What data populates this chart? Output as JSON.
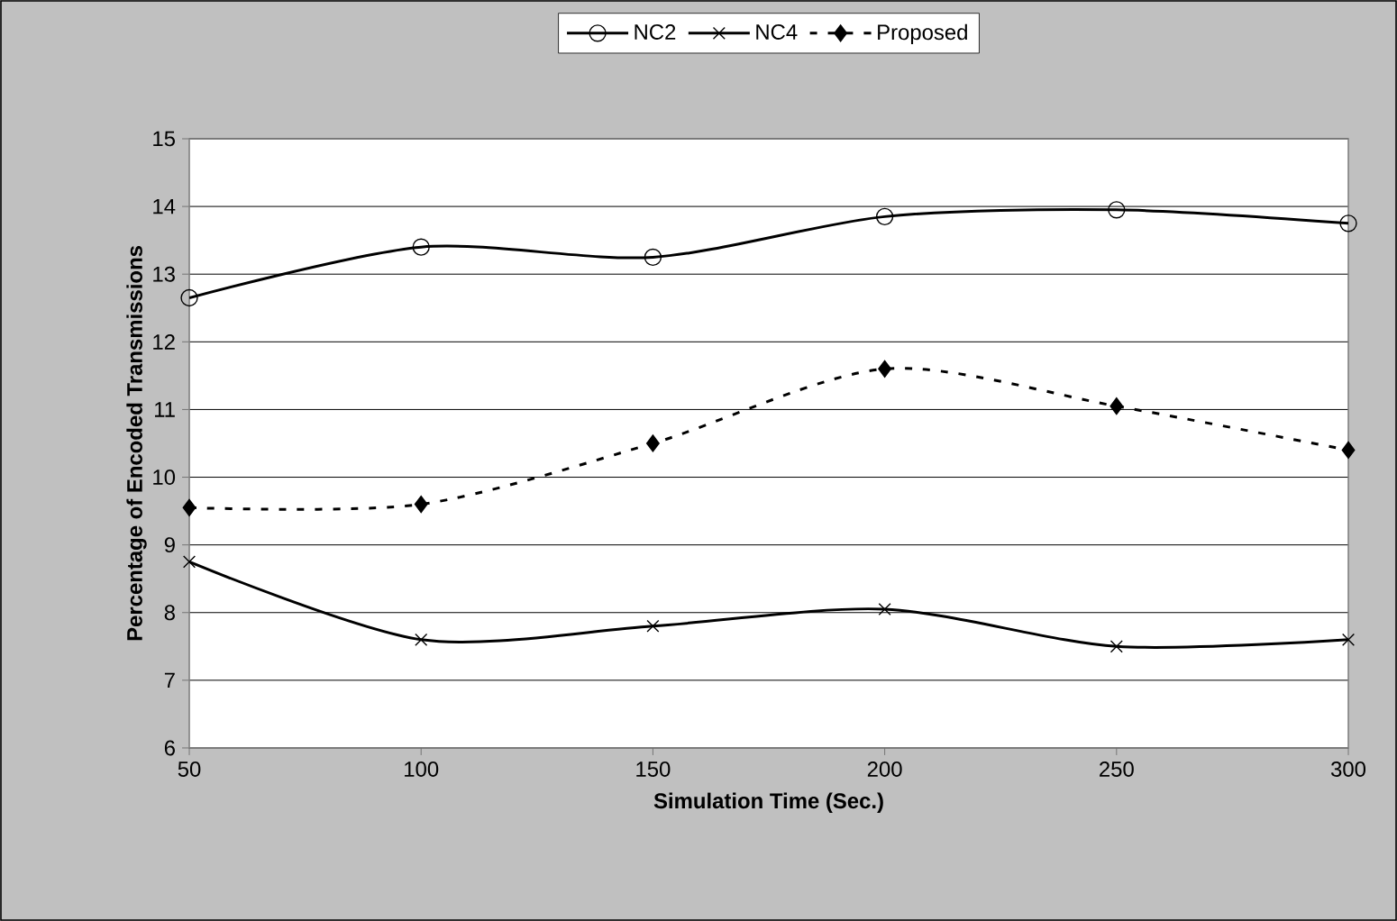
{
  "chart_data": {
    "type": "line",
    "xlabel": "Simulation Time (Sec.)",
    "ylabel": "Percentage of Encoded Transmissions",
    "x": [
      50,
      100,
      150,
      200,
      250,
      300
    ],
    "xlim": [
      50,
      300
    ],
    "xticks": [
      50,
      100,
      150,
      200,
      250,
      300
    ],
    "ylim": [
      6,
      15
    ],
    "yticks": [
      6,
      7,
      8,
      9,
      10,
      11,
      12,
      13,
      14,
      15
    ],
    "grid": "y",
    "legend": "top",
    "series": [
      {
        "name": "NC2",
        "color": "#000000",
        "marker": "circle",
        "line_style": "solid",
        "values": [
          12.65,
          13.4,
          13.25,
          13.85,
          13.95,
          13.75
        ]
      },
      {
        "name": "NC4",
        "color": "#000000",
        "marker": "cross",
        "line_style": "solid",
        "values": [
          8.75,
          7.6,
          7.8,
          8.05,
          7.5,
          7.6
        ]
      },
      {
        "name": "Proposed",
        "color": "#000000",
        "marker": "diamond",
        "line_style": "dashed",
        "values": [
          9.55,
          9.6,
          10.5,
          11.6,
          11.05,
          10.4
        ]
      }
    ]
  }
}
